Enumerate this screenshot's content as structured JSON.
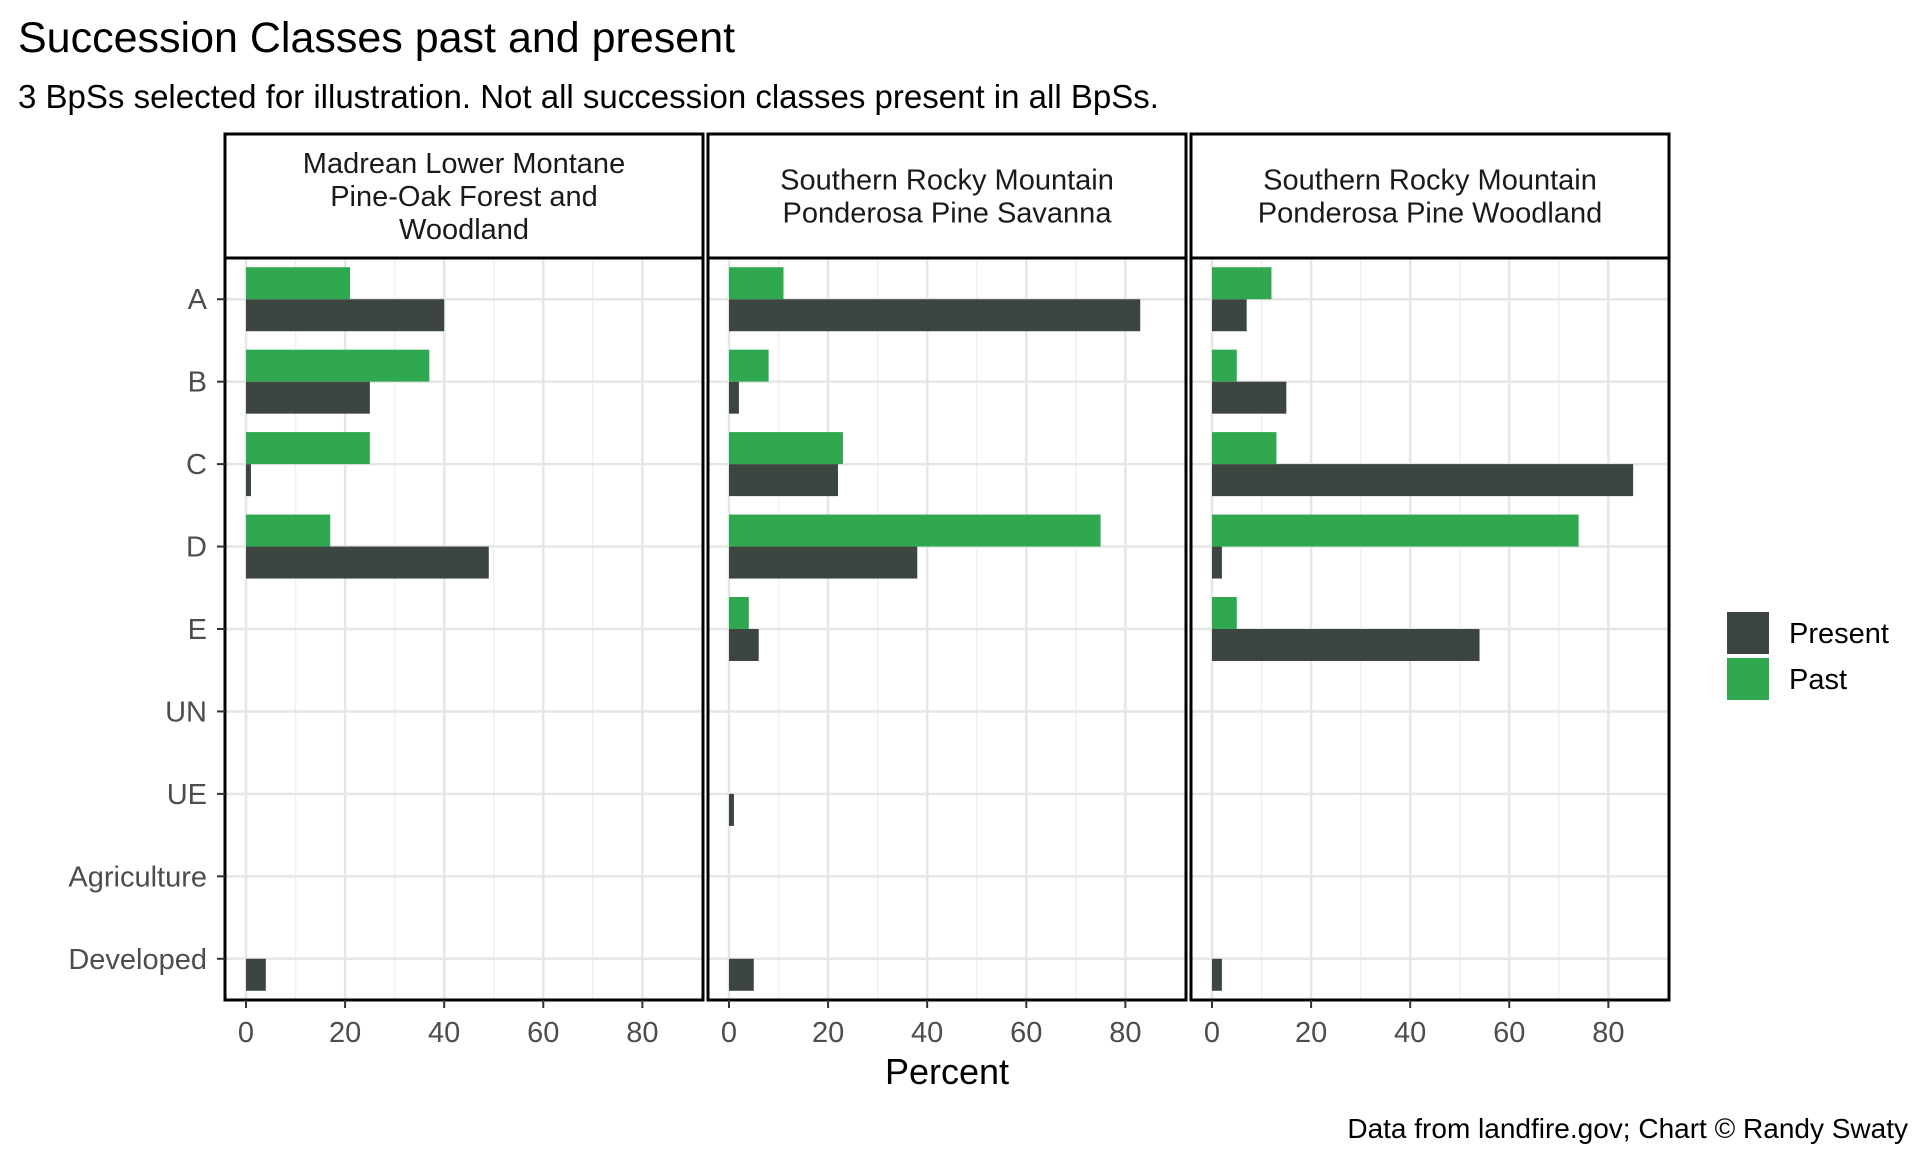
{
  "chart_data": {
    "type": "bar",
    "orientation": "horizontal",
    "title": "Succession Classes past and present",
    "subtitle": "3 BpSs selected for illustration. Not all succession classes present in all BpSs.",
    "xlabel": "Percent",
    "ylabel": "",
    "caption": "Data from landfire.gov; Chart © Randy Swaty",
    "categories": [
      "A",
      "B",
      "C",
      "D",
      "E",
      "UN",
      "UE",
      "Agriculture",
      "Developed"
    ],
    "xlim": [
      0,
      88
    ],
    "xticks": [
      0,
      20,
      40,
      60,
      80
    ],
    "grid": true,
    "legend_position": "right",
    "legend": [
      {
        "name": "Present",
        "color": "#3d4540"
      },
      {
        "name": "Past",
        "color": "#2fa84f"
      }
    ],
    "facets": [
      {
        "name": "Madrean Lower Montane Pine-Oak Forest and Woodland",
        "strip_lines": [
          "Madrean Lower Montane",
          "Pine-Oak Forest and",
          "Woodland"
        ],
        "series": [
          {
            "name": "Present",
            "values": [
              40,
              25,
              1,
              49,
              0,
              0,
              0,
              0,
              4
            ]
          },
          {
            "name": "Past",
            "values": [
              21,
              37,
              25,
              17,
              0,
              0,
              0,
              0,
              0
            ]
          }
        ]
      },
      {
        "name": "Southern Rocky Mountain Ponderosa Pine Savanna",
        "strip_lines": [
          "Southern Rocky Mountain",
          "Ponderosa Pine Savanna"
        ],
        "series": [
          {
            "name": "Present",
            "values": [
              83,
              2,
              22,
              38,
              6,
              0,
              1,
              0,
              5
            ]
          },
          {
            "name": "Past",
            "values": [
              11,
              8,
              23,
              75,
              4,
              0,
              0,
              0,
              0
            ]
          }
        ]
      },
      {
        "name": "Southern Rocky Mountain Ponderosa Pine Woodland",
        "strip_lines": [
          "Southern Rocky Mountain",
          "Ponderosa Pine Woodland"
        ],
        "series": [
          {
            "name": "Present",
            "values": [
              7,
              15,
              85,
              2,
              54,
              0,
              0,
              0,
              2
            ]
          },
          {
            "name": "Past",
            "values": [
              12,
              5,
              13,
              74,
              5,
              0,
              0,
              0,
              0
            ]
          }
        ]
      }
    ]
  }
}
